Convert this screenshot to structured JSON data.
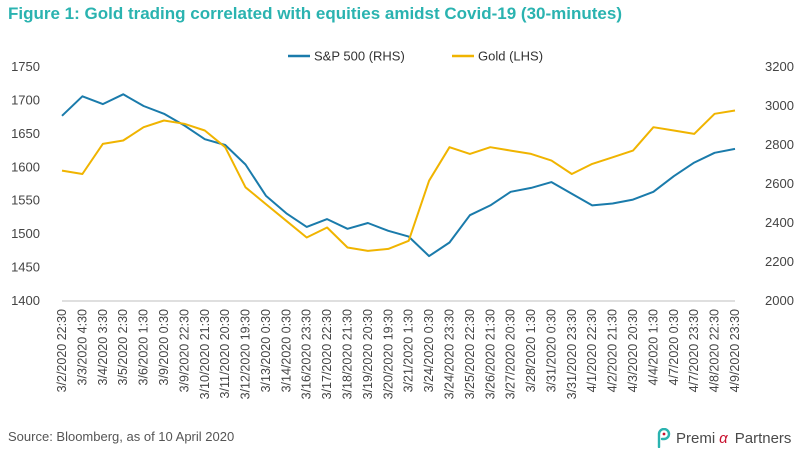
{
  "title": "Figure 1: Gold trading correlated with equities amidst Covid-19 (30-minutes)",
  "source": "Source: Bloomberg, as of 10 April 2020",
  "brand": {
    "part1": "Premi",
    "part2": "α",
    "part3": "Partners"
  },
  "colors": {
    "title": "#2ab3b0",
    "sp500": "#1a7bab",
    "gold": "#f0b400",
    "axis_text": "#444444",
    "grid": "#d9d9d9"
  },
  "chart_data": {
    "type": "line",
    "x_ticks": [
      "3/2/2020 22:30",
      "3/3/2020 4:30",
      "3/4/2020 3:30",
      "3/5/2020 2:30",
      "3/6/2020 1:30",
      "3/9/2020 0:30",
      "3/9/2020 22:30",
      "3/10/2020 21:30",
      "3/11/2020 20:30",
      "3/12/2020 19:30",
      "3/13/2020 0:30",
      "3/14/2020 0:30",
      "3/16/2020 23:30",
      "3/17/2020 22:30",
      "3/18/2020 21:30",
      "3/19/2020 20:30",
      "3/20/2020 19:30",
      "3/21/2020 1:30",
      "3/24/2020 0:30",
      "3/24/2020 23:30",
      "3/25/2020 22:30",
      "3/26/2020 21:30",
      "3/27/2020 20:30",
      "3/28/2020 1:30",
      "3/31/2020 0:30",
      "3/31/2020 23:30",
      "4/1/2020 22:30",
      "4/2/2020 21:30",
      "4/3/2020 20:30",
      "4/4/2020 1:30",
      "4/7/2020 0:30",
      "4/7/2020 23:30",
      "4/8/2020 22:30",
      "4/9/2020 23:30"
    ],
    "y_left": {
      "label": "Gold (LHS)",
      "ticks": [
        1400,
        1450,
        1500,
        1550,
        1600,
        1650,
        1700,
        1750
      ],
      "range": [
        1400,
        1750
      ]
    },
    "y_right": {
      "label": "S&P 500 (RHS)",
      "ticks": [
        2000,
        2200,
        2400,
        2600,
        2800,
        3000,
        3200
      ],
      "range": [
        2000,
        3200
      ]
    },
    "legend_position": "top-center",
    "series": [
      {
        "name": "S&P 500 (RHS)",
        "axis": "right",
        "color": "#1a7bab",
        "x": [
          0,
          1,
          2,
          3,
          4,
          5,
          6,
          7,
          8,
          9,
          10,
          11,
          12,
          13,
          14,
          15,
          16,
          17,
          18,
          19,
          20,
          21,
          22,
          23,
          24,
          25,
          26,
          27,
          28,
          29,
          30,
          31,
          32,
          33
        ],
        "values": [
          2950,
          3050,
          3010,
          3060,
          3000,
          2960,
          2900,
          2830,
          2800,
          2700,
          2540,
          2450,
          2380,
          2420,
          2370,
          2400,
          2360,
          2330,
          2230,
          2300,
          2440,
          2490,
          2560,
          2580,
          2610,
          2550,
          2490,
          2500,
          2520,
          2560,
          2640,
          2710,
          2760,
          2780
        ]
      },
      {
        "name": "Gold (LHS)",
        "axis": "left",
        "color": "#f0b400",
        "x": [
          0,
          1,
          2,
          3,
          4,
          5,
          6,
          7,
          8,
          9,
          10,
          11,
          12,
          13,
          14,
          15,
          16,
          17,
          18,
          19,
          20,
          21,
          22,
          23,
          24,
          25,
          26,
          27,
          28,
          29,
          30,
          31,
          32,
          33
        ],
        "values": [
          1595,
          1590,
          1635,
          1640,
          1660,
          1670,
          1665,
          1655,
          1630,
          1570,
          1545,
          1520,
          1495,
          1510,
          1480,
          1475,
          1478,
          1490,
          1580,
          1630,
          1620,
          1630,
          1625,
          1620,
          1610,
          1590,
          1605,
          1615,
          1625,
          1660,
          1655,
          1650,
          1680,
          1685
        ]
      }
    ]
  }
}
